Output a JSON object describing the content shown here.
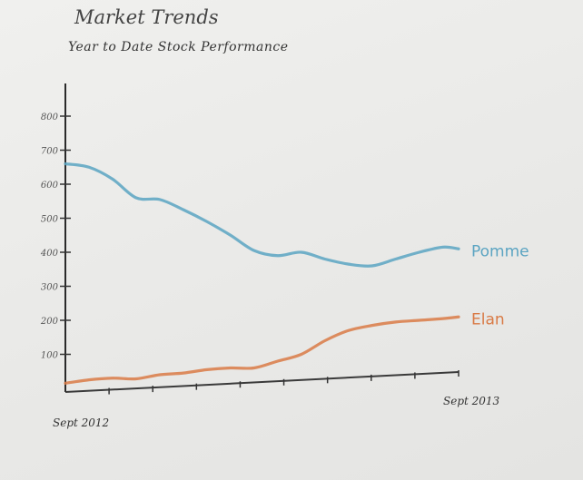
{
  "chart_data": {
    "type": "line",
    "title": "Market Trends",
    "subtitle": "Year to Date Stock Performance",
    "x_start_label": "Sept 2012",
    "x_end_label": "Sept 2013",
    "ylim": [
      0,
      800
    ],
    "y_ticks": [
      {
        "value": 100,
        "label": "100"
      },
      {
        "value": 200,
        "label": "200"
      },
      {
        "value": 300,
        "label": "300"
      },
      {
        "value": 400,
        "label": "400"
      },
      {
        "value": 500,
        "label": "500"
      },
      {
        "value": 600,
        "label": "600"
      },
      {
        "value": 700,
        "label": "700"
      },
      {
        "value": 800,
        "label": "800"
      }
    ],
    "x_tick_count": 9,
    "x": [
      0,
      0.06,
      0.12,
      0.18,
      0.24,
      0.3,
      0.36,
      0.42,
      0.48,
      0.54,
      0.6,
      0.66,
      0.72,
      0.78,
      0.84,
      0.9,
      0.96,
      1.0
    ],
    "series": [
      {
        "name": "Pomme",
        "color": "#5ba4c2",
        "values": [
          660,
          650,
          615,
          560,
          555,
          525,
          490,
          450,
          405,
          390,
          400,
          380,
          365,
          360,
          380,
          400,
          415,
          410
        ]
      },
      {
        "name": "Elan",
        "color": "#d97a45",
        "values": [
          15,
          25,
          30,
          28,
          40,
          45,
          55,
          60,
          60,
          80,
          100,
          140,
          170,
          185,
          195,
          200,
          205,
          210
        ]
      }
    ]
  }
}
